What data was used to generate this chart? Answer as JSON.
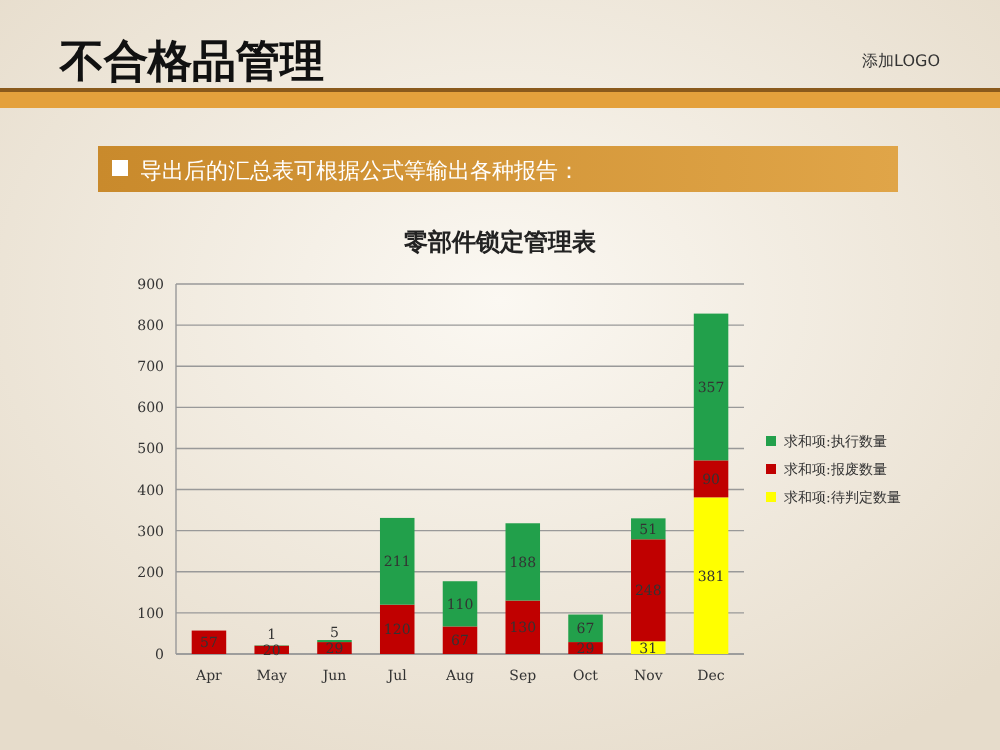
{
  "chart_data": {
    "type": "bar",
    "title": "零部件锁定管理表",
    "subtitle": "导出后的汇总表可根据公式等输出各种报告：",
    "annotations": [
      "不合格品管理",
      "添加LOGO"
    ],
    "categories": [
      "Apr",
      "May",
      "Jun",
      "Jul",
      "Aug",
      "Sep",
      "Oct",
      "Nov",
      "Dec"
    ],
    "stacked": true,
    "data_labels": true,
    "grid": "y",
    "legend": "right",
    "ylim": [
      0,
      900
    ],
    "yticks": [
      0,
      100,
      200,
      300,
      400,
      500,
      600,
      700,
      800,
      900
    ],
    "series": [
      {
        "name": "求和项:待判定数量",
        "color": "#ffff00",
        "values": [
          null,
          null,
          null,
          null,
          null,
          null,
          null,
          31,
          381
        ]
      },
      {
        "name": "求和项:报废数量",
        "color": "#c00000",
        "values": [
          57,
          20,
          29,
          120,
          67,
          130,
          29,
          248,
          90
        ]
      },
      {
        "name": "求和项:执行数量",
        "color": "#22a04b",
        "values": [
          null,
          1,
          5,
          211,
          110,
          188,
          67,
          51,
          357
        ]
      }
    ]
  }
}
